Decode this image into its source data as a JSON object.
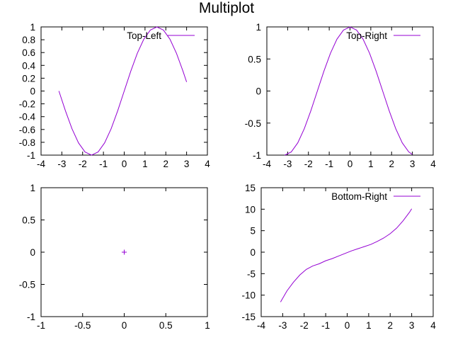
{
  "title": "Multiplot",
  "chart_data": [
    {
      "type": "line",
      "legend": "Top-Left",
      "legend_position": "top-right",
      "xlim": [
        -4,
        4
      ],
      "ylim": [
        -1,
        1
      ],
      "x_ticks": [
        "-4",
        "-3",
        "-2",
        "-1",
        "0",
        "1",
        "2",
        "3",
        "4"
      ],
      "y_ticks": [
        "-1",
        "-0.8",
        "-0.6",
        "-0.4",
        "-0.2",
        "0",
        "0.2",
        "0.4",
        "0.6",
        "0.8",
        "1"
      ],
      "series": [
        {
          "name": "Top-Left",
          "color": "#9400d3",
          "x": [
            -3.1416,
            -2.8274,
            -2.5133,
            -2.1991,
            -1.885,
            -1.5708,
            -1.2566,
            -0.9425,
            -0.6283,
            -0.3142,
            0.0,
            0.3142,
            0.6283,
            0.9425,
            1.2566,
            1.5708,
            1.885,
            2.1991,
            2.5133,
            2.8274,
            3.0
          ],
          "y": [
            0.0,
            -0.309,
            -0.5878,
            -0.809,
            -0.9511,
            -1.0,
            -0.9511,
            -0.809,
            -0.5878,
            -0.309,
            0.0,
            0.309,
            0.5878,
            0.809,
            0.9511,
            1.0,
            0.9511,
            0.809,
            0.5878,
            0.309,
            0.1411
          ]
        }
      ]
    },
    {
      "type": "line",
      "legend": "Top-Right",
      "legend_position": "top-right",
      "xlim": [
        -4,
        4
      ],
      "ylim": [
        -1,
        1
      ],
      "x_ticks": [
        "-4",
        "-3",
        "-2",
        "-1",
        "0",
        "1",
        "2",
        "3",
        "4"
      ],
      "y_ticks": [
        "-1",
        "-0.5",
        "0",
        "0.5",
        "1"
      ],
      "series": [
        {
          "name": "Top-Right",
          "color": "#9400d3",
          "x": [
            -3.1416,
            -2.8274,
            -2.5133,
            -2.1991,
            -1.885,
            -1.5708,
            -1.2566,
            -0.9425,
            -0.6283,
            -0.3142,
            0.0,
            0.3142,
            0.6283,
            0.9425,
            1.2566,
            1.5708,
            1.885,
            2.1991,
            2.5133,
            2.8274,
            3.0
          ],
          "y": [
            -1.0,
            -0.9511,
            -0.809,
            -0.5878,
            -0.309,
            0.0,
            0.309,
            0.5878,
            0.809,
            0.9511,
            1.0,
            0.9511,
            0.809,
            0.5878,
            0.309,
            0.0,
            -0.309,
            -0.5878,
            -0.809,
            -0.9511,
            -0.99
          ]
        }
      ]
    },
    {
      "type": "scatter",
      "legend": "",
      "xlim": [
        -1,
        1
      ],
      "ylim": [
        -1,
        1
      ],
      "x_ticks": [
        "-1",
        "-0.5",
        "0",
        "0.5",
        "1"
      ],
      "y_ticks": [
        "-1",
        "-0.5",
        "0",
        "0.5",
        "1"
      ],
      "series": [
        {
          "color": "#9400d3",
          "x": [
            0
          ],
          "y": [
            0
          ]
        }
      ]
    },
    {
      "type": "line",
      "legend": "Bottom-Right",
      "legend_position": "top-right",
      "xlim": [
        -4,
        4
      ],
      "ylim": [
        -15,
        15
      ],
      "x_ticks": [
        "-4",
        "-3",
        "-2",
        "-1",
        "0",
        "1",
        "2",
        "3",
        "4"
      ],
      "y_ticks": [
        "-15",
        "-10",
        "-5",
        "0",
        "5",
        "10",
        "15"
      ],
      "series": [
        {
          "name": "Bottom-Right",
          "color": "#9400d3",
          "x": [
            -3.1,
            -2.8,
            -2.5,
            -2.2,
            -1.9,
            -1.6,
            -1.3,
            -1.0,
            -0.7,
            -0.4,
            -0.1,
            0.2,
            0.5,
            0.8,
            1.1,
            1.4,
            1.7,
            2.0,
            2.3,
            2.6,
            2.9,
            3.0
          ],
          "y": [
            -11.6,
            -9.0,
            -7.0,
            -5.3,
            -4.0,
            -3.2,
            -2.7,
            -2.0,
            -1.5,
            -0.9,
            -0.3,
            0.3,
            0.8,
            1.3,
            1.8,
            2.5,
            3.3,
            4.3,
            5.6,
            7.3,
            9.3,
            10.1
          ]
        }
      ]
    }
  ]
}
